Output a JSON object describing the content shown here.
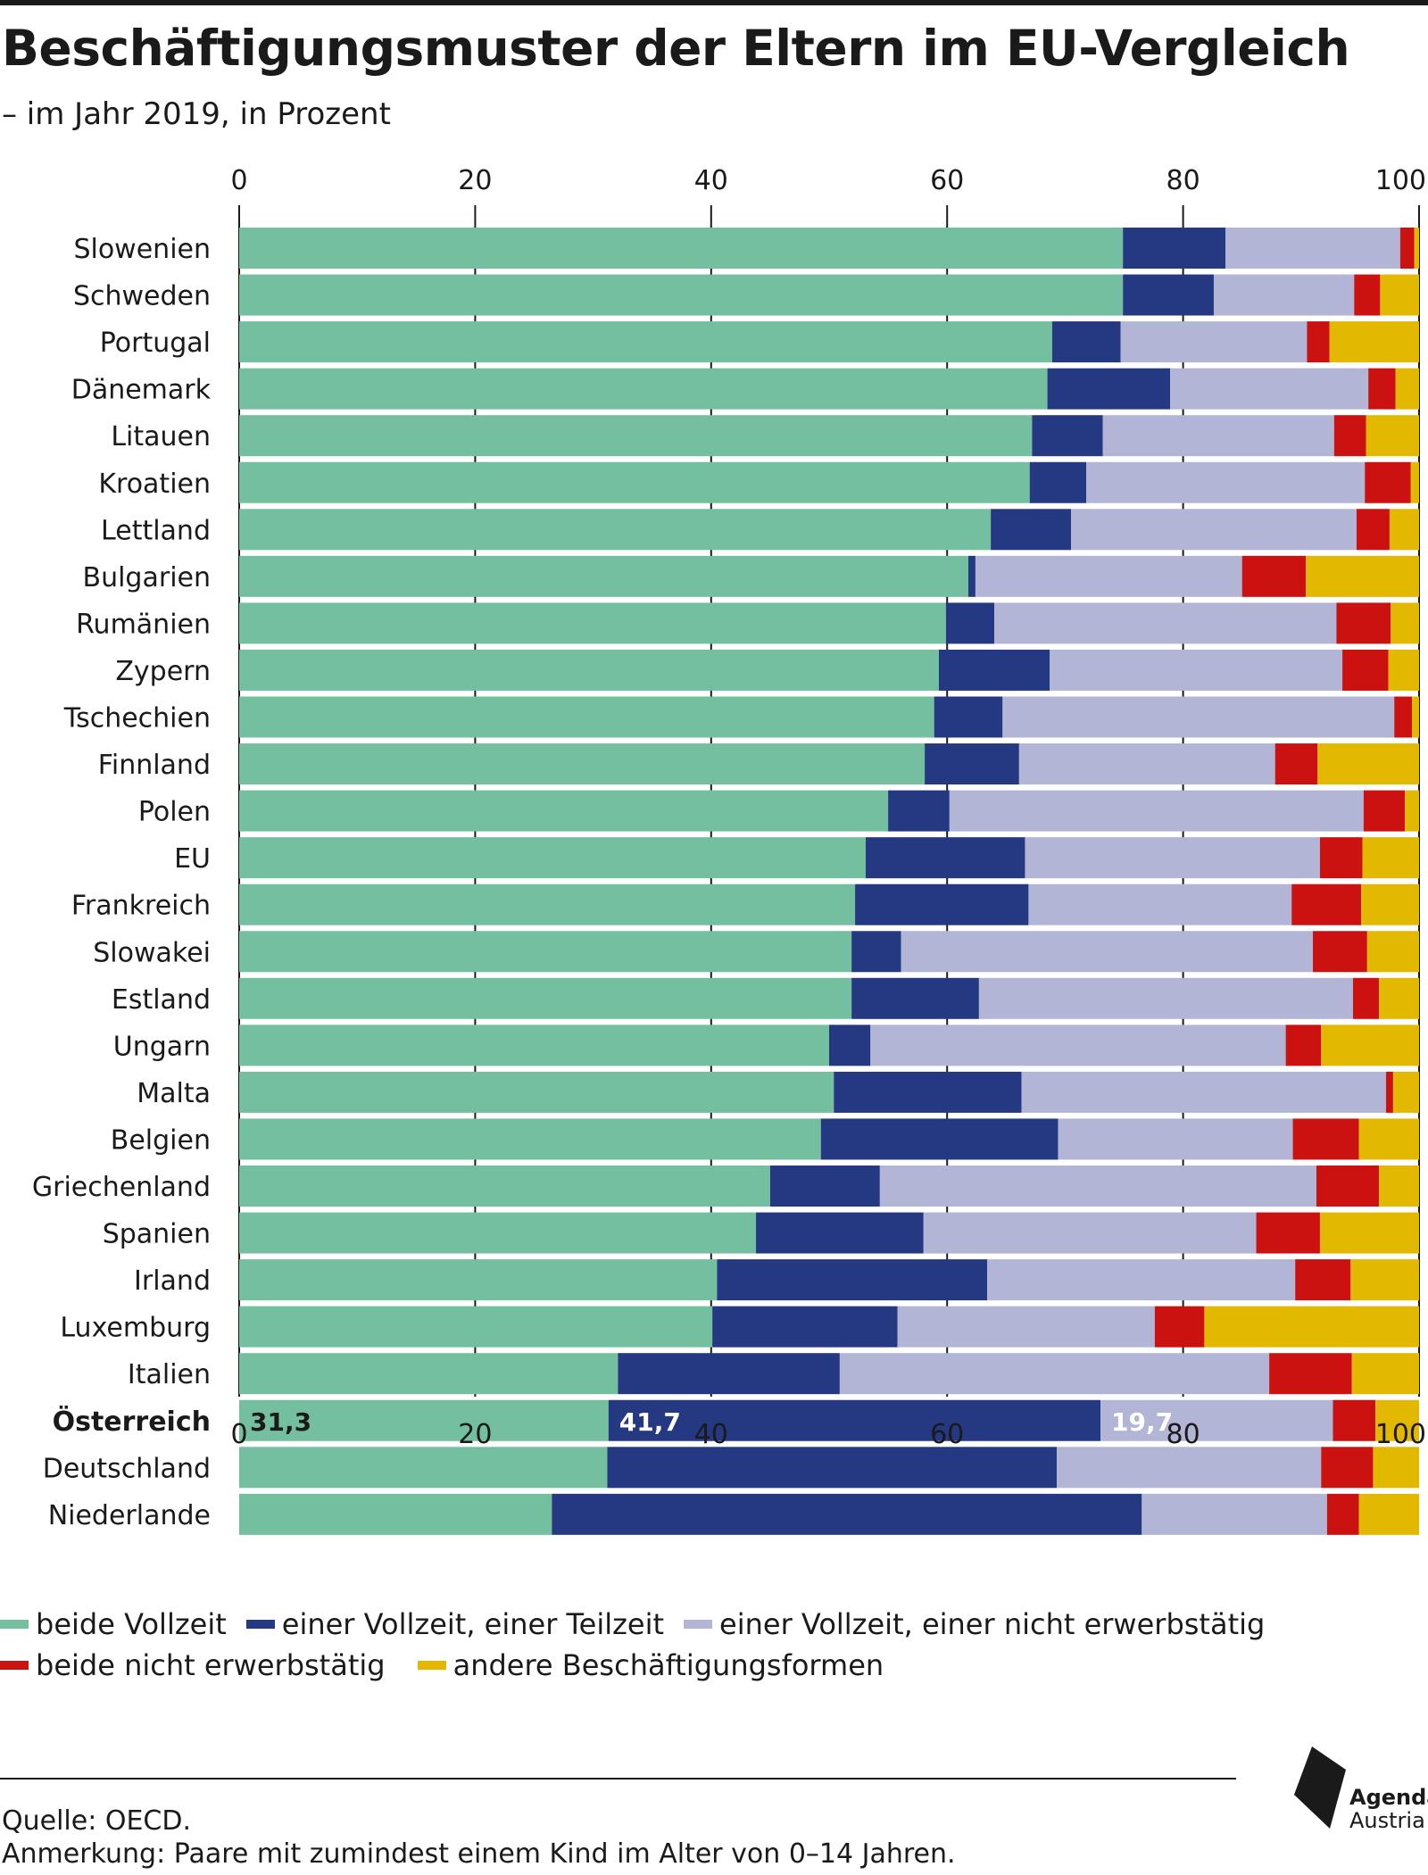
{
  "title": "Beschäftigungsmuster der Eltern im EU-Vergleich",
  "subtitle": "– im Jahr 2019, in Prozent",
  "source": "Quelle: OECD.",
  "note": "Anmerkung: Paare mit zumindest einem Kind im Alter von 0–14 Jahren.",
  "logo": {
    "line1": "Agenda",
    "line2": "Austria"
  },
  "colors": {
    "beide_vollzeit": "#74bfa0",
    "vollzeit_teilzeit": "#253882",
    "vollzeit_nicht": "#b2b5d5",
    "beide_nicht": "#cc1111",
    "andere": "#e2b800",
    "text": "#1a1a1a"
  },
  "chart_data": {
    "type": "bar",
    "orientation": "horizontal",
    "stacked": true,
    "title": "Beschäftigungsmuster der Eltern im EU-Vergleich",
    "subtitle": "– im Jahr 2019, in Prozent",
    "xlim": [
      0,
      100
    ],
    "xticks": [
      0,
      20,
      40,
      60,
      80,
      100
    ],
    "highlight": "Österreich",
    "categories": [
      "Slowenien",
      "Schweden",
      "Portugal",
      "Dänemark",
      "Litauen",
      "Kroatien",
      "Lettland",
      "Bulgarien",
      "Rumänien",
      "Zypern",
      "Tschechien",
      "Finnland",
      "Polen",
      "EU",
      "Frankreich",
      "Slowakei",
      "Estland",
      "Ungarn",
      "Malta",
      "Belgien",
      "Griechenland",
      "Spanien",
      "Irland",
      "Luxemburg",
      "Italien",
      "Österreich",
      "Deutschland",
      "Niederlande"
    ],
    "series": [
      {
        "name": "beide Vollzeit",
        "color_key": "beide_vollzeit",
        "values": [
          74.9,
          74.9,
          68.9,
          68.5,
          67.2,
          67.0,
          63.7,
          61.8,
          59.9,
          59.3,
          58.9,
          58.1,
          55.0,
          53.1,
          52.2,
          51.9,
          51.9,
          50.0,
          50.4,
          49.3,
          45.0,
          43.8,
          40.5,
          40.1,
          32.1,
          31.3,
          31.2,
          26.5
        ]
      },
      {
        "name": "einer Vollzeit, einer Teilzeit",
        "color_key": "vollzeit_teilzeit",
        "values": [
          8.7,
          7.7,
          5.8,
          10.4,
          6.0,
          4.8,
          6.8,
          0.6,
          4.1,
          9.4,
          5.8,
          8.0,
          5.2,
          13.5,
          14.7,
          4.2,
          10.8,
          3.5,
          15.9,
          20.1,
          9.3,
          14.2,
          22.9,
          15.7,
          18.8,
          41.7,
          38.1,
          50.0
        ]
      },
      {
        "name": "einer Vollzeit, einer nicht erwerbstätig",
        "color_key": "vollzeit_nicht",
        "values": [
          14.8,
          11.9,
          15.8,
          16.8,
          19.6,
          23.6,
          24.2,
          22.6,
          29.0,
          24.8,
          33.2,
          21.7,
          35.1,
          25.0,
          22.3,
          34.9,
          31.7,
          35.2,
          30.9,
          19.9,
          37.0,
          28.2,
          26.1,
          21.8,
          36.4,
          19.7,
          22.4,
          15.7
        ]
      },
      {
        "name": "beide nicht erwerbstätig",
        "color_key": "beide_nicht",
        "values": [
          1.2,
          2.2,
          1.9,
          2.3,
          2.7,
          3.9,
          2.8,
          5.4,
          4.6,
          3.9,
          1.5,
          3.6,
          3.5,
          3.6,
          5.9,
          4.6,
          2.2,
          3.0,
          0.6,
          5.6,
          5.3,
          5.4,
          4.7,
          4.2,
          7.0,
          3.6,
          4.4,
          2.7
        ]
      },
      {
        "name": "andere Beschäftigungsformen",
        "color_key": "andere",
        "values": [
          0.4,
          3.3,
          7.6,
          2.0,
          4.5,
          0.7,
          2.5,
          9.6,
          2.4,
          2.6,
          0.6,
          8.6,
          1.2,
          4.8,
          4.9,
          4.4,
          3.4,
          8.3,
          2.2,
          5.1,
          3.4,
          8.4,
          5.8,
          18.2,
          5.7,
          3.7,
          3.9,
          5.1
        ]
      }
    ],
    "data_labels": [
      {
        "category": "Österreich",
        "series": "beide Vollzeit",
        "text": "31,3"
      },
      {
        "category": "Österreich",
        "series": "einer Vollzeit, einer Teilzeit",
        "text": "41,7"
      },
      {
        "category": "Österreich",
        "series": "einer Vollzeit, einer nicht erwerbstätig",
        "text": "19,7"
      }
    ],
    "legend": {
      "placement": "bottom",
      "rows": [
        [
          "beide Vollzeit",
          "einer Vollzeit, einer Teilzeit",
          "einer Vollzeit, einer nicht erwerbstätig"
        ],
        [
          "beide nicht erwerbstätig",
          "andere Beschäftigungsformen"
        ]
      ]
    }
  }
}
